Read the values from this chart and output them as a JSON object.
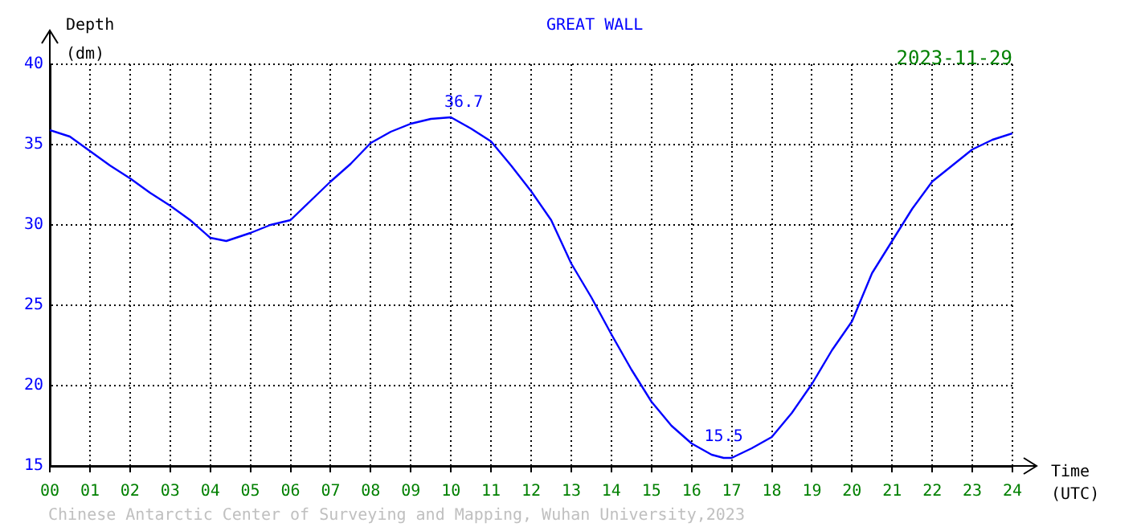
{
  "chart_data": {
    "type": "line",
    "title": "GREAT WALL",
    "subtitle": "2023-11-29",
    "xlabel": "Time\n(UTC)",
    "ylabel": "Depth\n(dm)",
    "x": [
      0,
      0.5,
      1,
      1.5,
      2,
      2.5,
      3,
      3.5,
      4,
      4.4,
      5,
      5.5,
      6,
      6.5,
      7,
      7.5,
      8,
      8.5,
      9,
      9.5,
      10,
      10.5,
      11,
      11.5,
      12,
      12.5,
      13,
      13.5,
      14,
      14.5,
      15,
      15.5,
      16,
      16.5,
      16.8,
      17,
      17.5,
      18,
      18.5,
      19,
      19.5,
      20,
      20.5,
      21,
      21.5,
      22,
      22.5,
      23,
      23.5,
      24
    ],
    "series": [
      {
        "color": "#0000ff",
        "values": [
          35.9,
          35.5,
          34.6,
          33.7,
          32.9,
          32.0,
          31.2,
          30.3,
          29.2,
          29.0,
          29.5,
          30.0,
          30.3,
          31.5,
          32.7,
          33.8,
          35.1,
          35.8,
          36.3,
          36.6,
          36.7,
          36.0,
          35.2,
          33.7,
          32.1,
          30.3,
          27.6,
          25.5,
          23.2,
          21.0,
          19.0,
          17.5,
          16.4,
          15.7,
          15.5,
          15.5,
          16.1,
          16.8,
          18.3,
          20.1,
          22.2,
          24.0,
          27.0,
          29.0,
          31.0,
          32.7,
          33.7,
          34.7,
          35.3,
          35.7
        ]
      }
    ],
    "xlim": [
      0,
      24
    ],
    "xticks": [
      {
        "value": 0,
        "label": "00"
      },
      {
        "value": 1,
        "label": "01"
      },
      {
        "value": 2,
        "label": "02"
      },
      {
        "value": 3,
        "label": "03"
      },
      {
        "value": 4,
        "label": "04"
      },
      {
        "value": 5,
        "label": "05"
      },
      {
        "value": 6,
        "label": "06"
      },
      {
        "value": 7,
        "label": "07"
      },
      {
        "value": 8,
        "label": "08"
      },
      {
        "value": 9,
        "label": "09"
      },
      10,
      11,
      12,
      13,
      14,
      15,
      16,
      17,
      18,
      19,
      20,
      21,
      22,
      23,
      24
    ],
    "ylim": [
      15,
      40
    ],
    "yticks": [
      15,
      20,
      25,
      30,
      35,
      40
    ],
    "grid": true,
    "legend": false,
    "marker": "none",
    "line_style": "solid",
    "annotations": [
      {
        "text": "36.7",
        "x": 10,
        "y": 36.7
      },
      {
        "text": "15.5",
        "x": 16.8,
        "y": 15.5
      },
      "Chinese Antarctic Center of Surveying and Mapping, Wuhan University,2023"
    ]
  }
}
